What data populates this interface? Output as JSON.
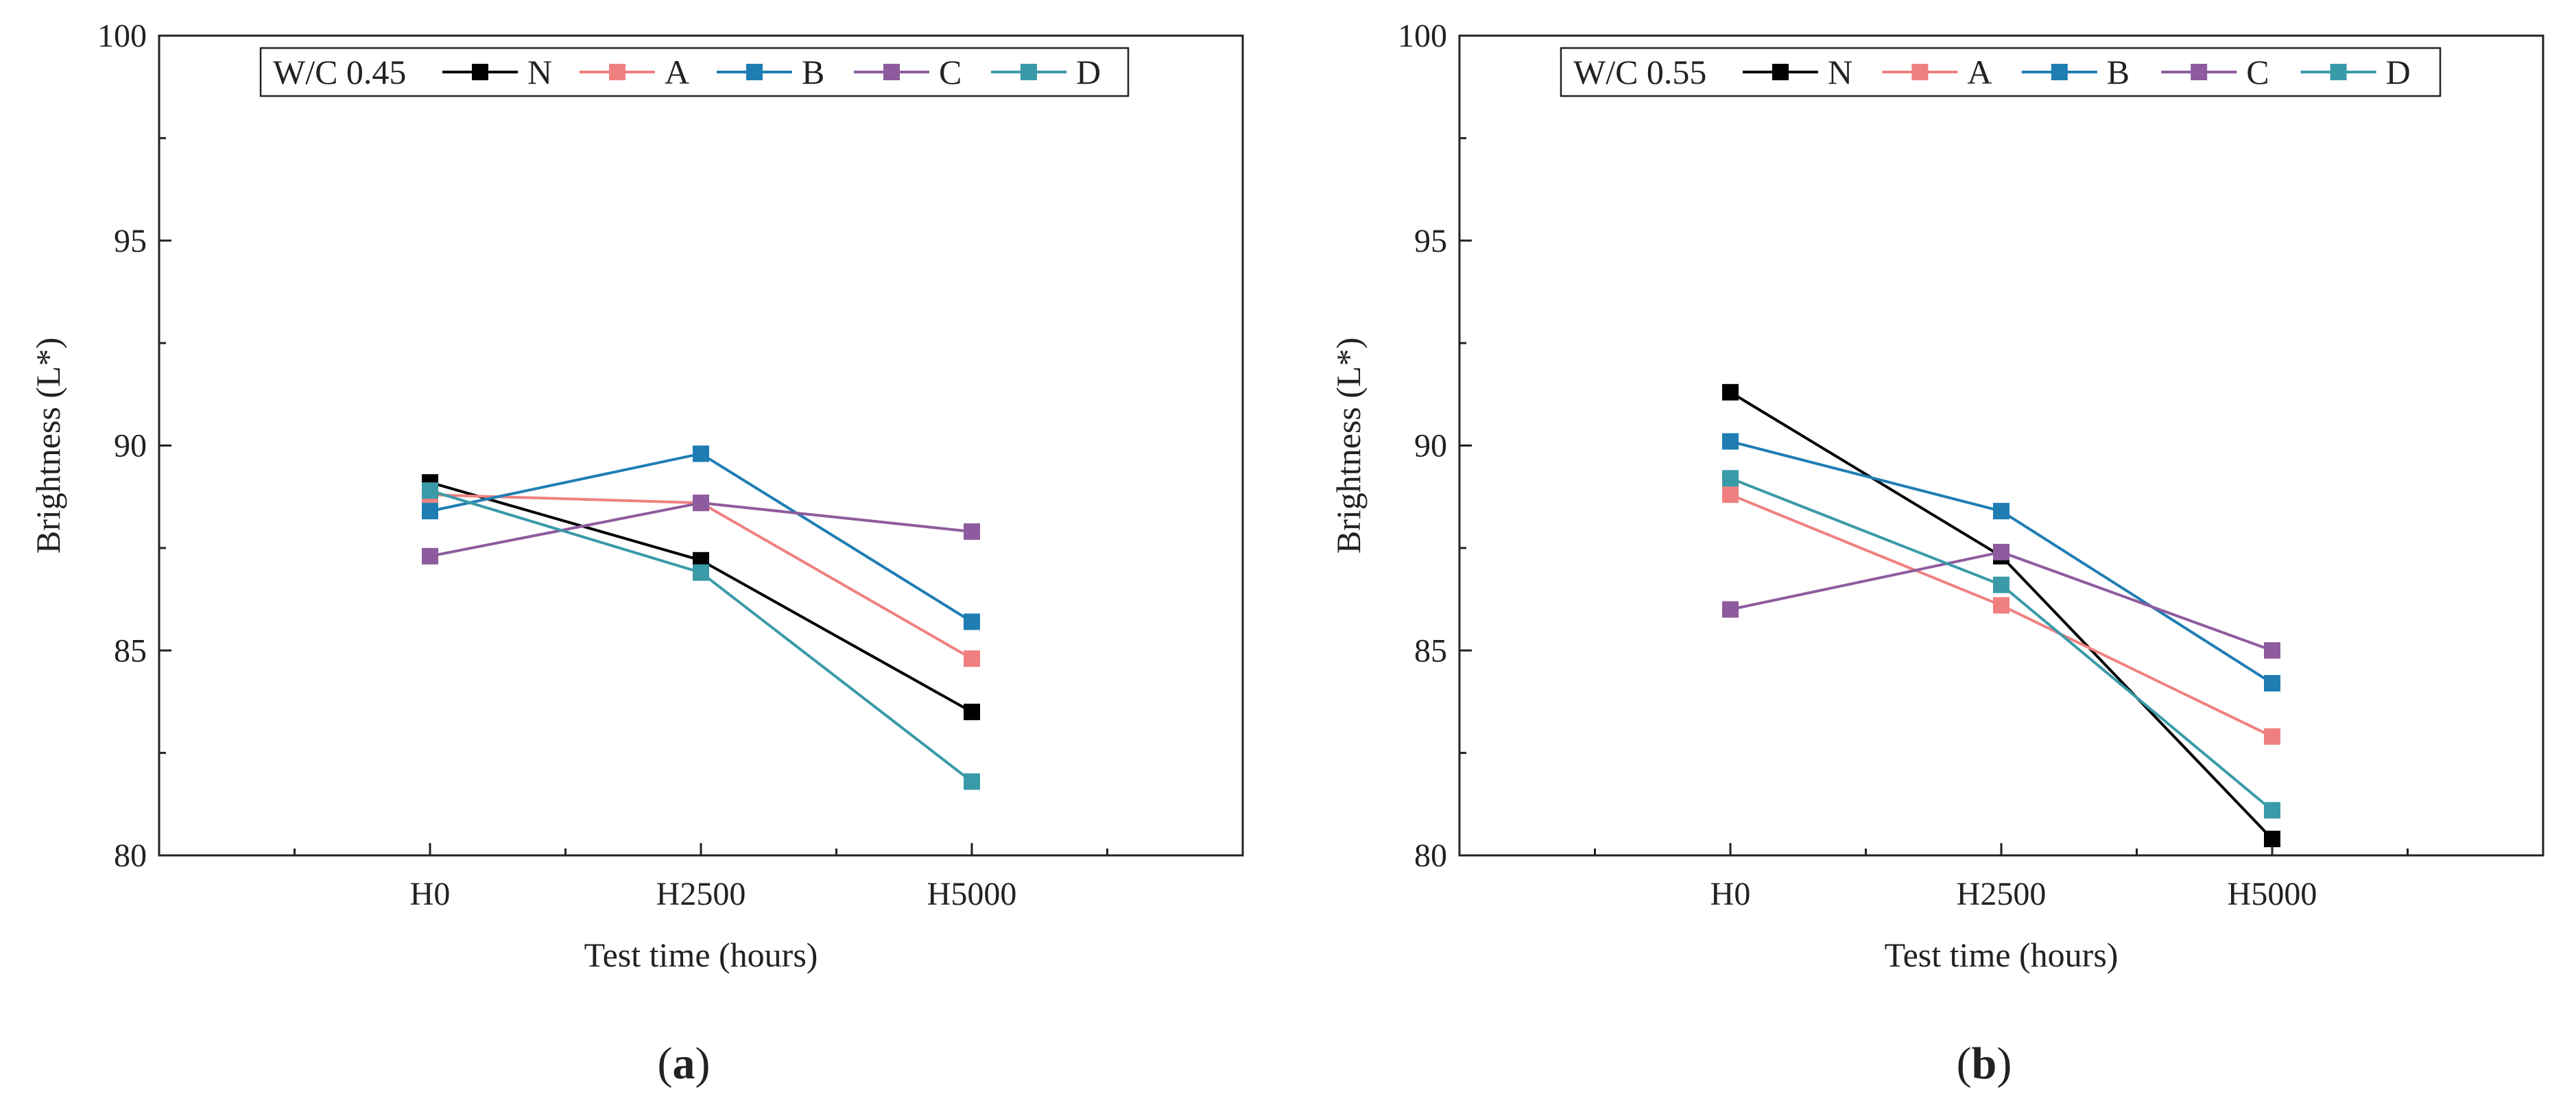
{
  "chart_data": [
    {
      "type": "line",
      "panel_label": "a",
      "legend_title": "W/C 0.45",
      "categories": [
        "H0",
        "H2500",
        "H5000"
      ],
      "xlabel": "Test time (hours)",
      "ylabel": "Brightness (L*)",
      "ylim": [
        80,
        100
      ],
      "yticks": [
        80,
        85,
        90,
        95,
        100
      ],
      "legend_position": "top",
      "series": [
        {
          "name": "N",
          "color": "#000000",
          "values": [
            89.1,
            87.2,
            83.5
          ]
        },
        {
          "name": "A",
          "color": "#F08080",
          "values": [
            88.8,
            88.6,
            84.8
          ]
        },
        {
          "name": "B",
          "color": "#1F7DB4",
          "values": [
            88.4,
            89.8,
            85.7
          ]
        },
        {
          "name": "C",
          "color": "#8E5B9E",
          "values": [
            87.3,
            88.6,
            87.9
          ]
        },
        {
          "name": "D",
          "color": "#3A9AA8",
          "values": [
            88.9,
            86.9,
            81.8
          ]
        }
      ]
    },
    {
      "type": "line",
      "panel_label": "b",
      "legend_title": "W/C 0.55",
      "categories": [
        "H0",
        "H2500",
        "H5000"
      ],
      "xlabel": "Test time (hours)",
      "ylabel": "Brightness (L*)",
      "ylim": [
        80,
        100
      ],
      "yticks": [
        80,
        85,
        90,
        95,
        100
      ],
      "legend_position": "top",
      "series": [
        {
          "name": "N",
          "color": "#000000",
          "values": [
            91.3,
            87.3,
            80.4
          ]
        },
        {
          "name": "A",
          "color": "#F08080",
          "values": [
            88.8,
            86.1,
            82.9
          ]
        },
        {
          "name": "B",
          "color": "#1F7DB4",
          "values": [
            90.1,
            88.4,
            84.2
          ]
        },
        {
          "name": "C",
          "color": "#8E5B9E",
          "values": [
            86.0,
            87.4,
            85.0
          ]
        },
        {
          "name": "D",
          "color": "#3A9AA8",
          "values": [
            89.2,
            86.6,
            81.1
          ]
        }
      ]
    }
  ]
}
